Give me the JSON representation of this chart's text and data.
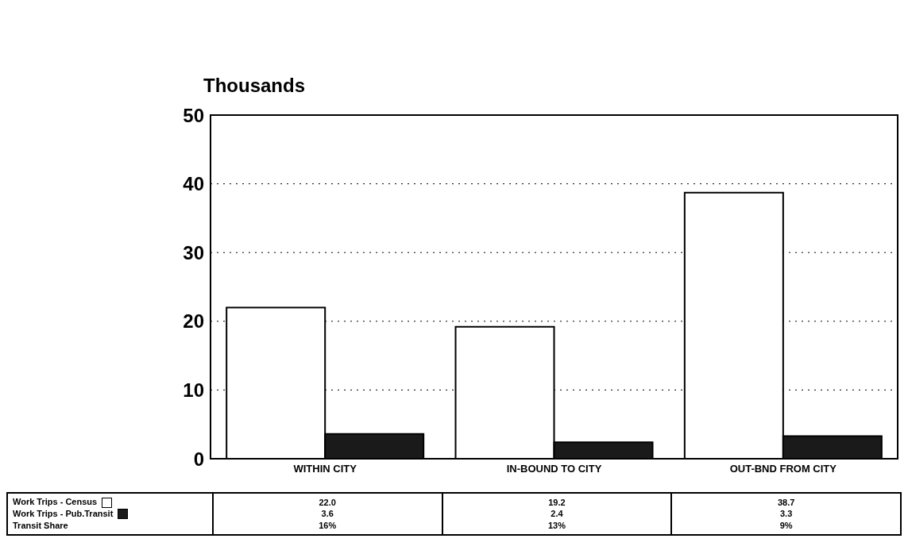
{
  "chart_data": {
    "type": "bar",
    "ylabel": "Thousands",
    "categories": [
      "WITHIN CITY",
      "IN-BOUND TO CITY",
      "OUT-BND FROM CITY"
    ],
    "series": [
      {
        "name": "Work Trips - Census",
        "color": "#ffffff",
        "values": [
          22.0,
          19.2,
          38.7
        ],
        "value_labels": [
          "22.0",
          "19.2",
          "38.7"
        ]
      },
      {
        "name": "Work Trips - Pub.Transit",
        "color": "#1a1a1a",
        "values": [
          3.6,
          2.4,
          3.3
        ],
        "value_labels": [
          "3.6",
          "2.4",
          "3.3"
        ]
      }
    ],
    "ylim": [
      0,
      50
    ],
    "yticks": [
      0,
      10,
      20,
      30,
      40,
      50
    ],
    "grid": "y",
    "legend": "bottom",
    "annotations": [
      "Transit Share",
      "16%",
      "13%",
      "9%"
    ]
  }
}
